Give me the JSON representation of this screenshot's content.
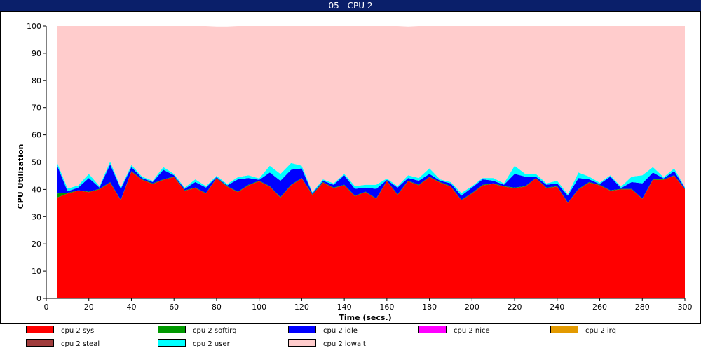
{
  "window": {
    "title": "05 - CPU 2"
  },
  "chart_data": {
    "type": "area",
    "stacked": true,
    "xlabel": "Time (secs.)",
    "ylabel": "CPU Utilization",
    "xlim": [
      0,
      300
    ],
    "ylim": [
      0,
      100
    ],
    "xticks": [
      0,
      20,
      40,
      60,
      80,
      100,
      120,
      140,
      160,
      180,
      200,
      220,
      240,
      260,
      280,
      300
    ],
    "yticks": [
      0,
      10,
      20,
      30,
      40,
      50,
      60,
      70,
      80,
      90,
      100
    ],
    "grid": false,
    "legend_position": "bottom",
    "x": [
      5,
      10,
      15,
      20,
      25,
      30,
      35,
      40,
      45,
      50,
      55,
      60,
      65,
      70,
      75,
      80,
      85,
      90,
      95,
      100,
      105,
      110,
      115,
      120,
      125,
      130,
      135,
      140,
      145,
      150,
      155,
      160,
      165,
      170,
      175,
      180,
      185,
      190,
      195,
      200,
      205,
      210,
      215,
      220,
      225,
      230,
      235,
      240,
      245,
      250,
      255,
      260,
      265,
      270,
      275,
      280,
      285,
      290,
      295,
      300
    ],
    "series": [
      {
        "name": "cpu 2 sys",
        "color": "#ff0000",
        "values": [
          37,
          38.5,
          39.5,
          39,
          40,
          42.5,
          36,
          46.5,
          43.5,
          42,
          43.5,
          44.5,
          39.5,
          40.5,
          38.5,
          44,
          41,
          39,
          41.5,
          43,
          41,
          37,
          41.5,
          44,
          38,
          42.5,
          40.5,
          41.5,
          37.5,
          39,
          36.5,
          43,
          38,
          43,
          41.5,
          44.5,
          42.5,
          41,
          36,
          38.5,
          41.5,
          42,
          41,
          40.5,
          41,
          44,
          40.5,
          41,
          35,
          40,
          42.5,
          41.5,
          39.5,
          40,
          40,
          36.5,
          43.5,
          43.5,
          45,
          40
        ]
      },
      {
        "name": "cpu 2 softirq",
        "color": "#009900",
        "values": [
          1.5,
          0.3,
          0.2,
          0.2,
          0.2,
          0.2,
          0.2,
          0.2,
          0.2,
          0.2,
          0.2,
          0.2,
          0.2,
          0.2,
          0.2,
          0.2,
          0.2,
          0.2,
          0.2,
          0.2,
          0.2,
          0.2,
          0.2,
          0.2,
          0.2,
          0.2,
          0.2,
          0.2,
          0.2,
          0.2,
          0.2,
          0.2,
          0.2,
          0.2,
          0.2,
          0.2,
          0.2,
          0.2,
          0.2,
          0.2,
          0.2,
          0.2,
          0.2,
          0.2,
          0.2,
          0.2,
          0.2,
          0.2,
          0.2,
          0.2,
          0.2,
          0.2,
          0.2,
          0.2,
          0.2,
          0.2,
          0.2,
          0.2,
          0.2,
          0.2
        ]
      },
      {
        "name": "cpu 2 idle",
        "color": "#0000ff",
        "values": [
          10.5,
          0.5,
          1,
          5,
          0.5,
          6.5,
          4,
          1.5,
          0.5,
          0.5,
          3.5,
          0.5,
          0.5,
          2,
          2,
          0.3,
          0.3,
          4.5,
          2.5,
          0.3,
          5,
          6,
          5.5,
          3.5,
          0.3,
          0.5,
          1,
          3.5,
          2.5,
          1.5,
          3.5,
          0.3,
          2.5,
          1,
          1.5,
          1,
          0.5,
          1,
          1.5,
          2,
          2,
          1,
          0.5,
          5,
          3.5,
          0.5,
          1,
          1,
          2.5,
          4,
          1,
          0.3,
          5,
          0.3,
          2.5,
          5.5,
          2.5,
          0.3,
          1.5,
          0.3
        ]
      },
      {
        "name": "cpu 2 nice",
        "color": "#ff00ff",
        "values": [
          0,
          0,
          0,
          0,
          0,
          0,
          0,
          0,
          0,
          0,
          0,
          0,
          0,
          0,
          0,
          0,
          0,
          0,
          0,
          0,
          0,
          0,
          0,
          0,
          0,
          0,
          0,
          0,
          0,
          0,
          0,
          0,
          0,
          0,
          0,
          0,
          0,
          0,
          0,
          0,
          0,
          0,
          0,
          0,
          0,
          0,
          0,
          0,
          0,
          0,
          0,
          0,
          0,
          0,
          0,
          0,
          0,
          0,
          0,
          0
        ]
      },
      {
        "name": "cpu 2 irq",
        "color": "#e39a00",
        "values": [
          0,
          0,
          0,
          0,
          0,
          0,
          0,
          0,
          0,
          0,
          0,
          0,
          0,
          0,
          0,
          0,
          0,
          0,
          0,
          0,
          0,
          0,
          0,
          0,
          0,
          0,
          0,
          0,
          0,
          0,
          0,
          0,
          0,
          0,
          0,
          0,
          0,
          0,
          0,
          0,
          0,
          0,
          0,
          0,
          0,
          0,
          0,
          0,
          0,
          0,
          0,
          0,
          0,
          0,
          0,
          0,
          0,
          0,
          0,
          0
        ]
      },
      {
        "name": "cpu 2 steal",
        "color": "#a03c3c",
        "values": [
          0,
          0,
          0,
          0,
          0,
          0,
          0,
          0,
          0,
          0,
          0,
          0,
          0,
          0,
          0,
          0,
          0,
          0,
          0,
          0,
          0,
          0,
          0,
          0,
          0,
          0,
          0,
          0,
          0,
          0,
          0,
          0,
          0,
          0,
          0,
          0,
          0,
          0,
          0,
          0,
          0,
          0,
          0,
          0,
          0,
          0,
          0,
          0,
          0,
          0,
          0,
          0,
          0,
          0,
          0,
          0,
          0,
          0,
          0,
          0
        ]
      },
      {
        "name": "cpu 2 user",
        "color": "#00ffff",
        "values": [
          1,
          1,
          0.8,
          1.5,
          0.5,
          1,
          0.5,
          0.8,
          0.5,
          0.5,
          1,
          0.5,
          0.5,
          1,
          0.5,
          0.5,
          0.5,
          0.8,
          1,
          0.5,
          2.5,
          2.5,
          2.5,
          1,
          0.5,
          0.5,
          0.5,
          0.5,
          1,
          1,
          1.5,
          0.5,
          0.5,
          1,
          1,
          2,
          0.5,
          0.5,
          1,
          0.5,
          0.5,
          1,
          0.5,
          3,
          1,
          1,
          0.5,
          1,
          0.5,
          2,
          1,
          0.5,
          0.5,
          0.5,
          2,
          3,
          2,
          0.5,
          1,
          0.3
        ]
      },
      {
        "name": "cpu 2 iowait",
        "color": "#ffcccc",
        "values": [
          50,
          59.7,
          58.5,
          54.3,
          58.8,
          49.8,
          59.3,
          51,
          55.3,
          56.8,
          51.8,
          54.3,
          59.3,
          56.3,
          58.8,
          54.8,
          57.8,
          55.5,
          54.8,
          56,
          51.3,
          54.3,
          50.3,
          51.3,
          61,
          56.3,
          57.8,
          54.3,
          58.8,
          58.3,
          58.3,
          56,
          58.8,
          54.6,
          55.8,
          52.3,
          56.3,
          57.3,
          61.3,
          58.8,
          55.8,
          55.8,
          57.8,
          51.3,
          54.3,
          54.3,
          57.8,
          56.8,
          61.8,
          53.8,
          55.3,
          57.5,
          54.8,
          59,
          55.3,
          54.8,
          51.8,
          55.5,
          52.3,
          59.2
        ]
      }
    ]
  }
}
